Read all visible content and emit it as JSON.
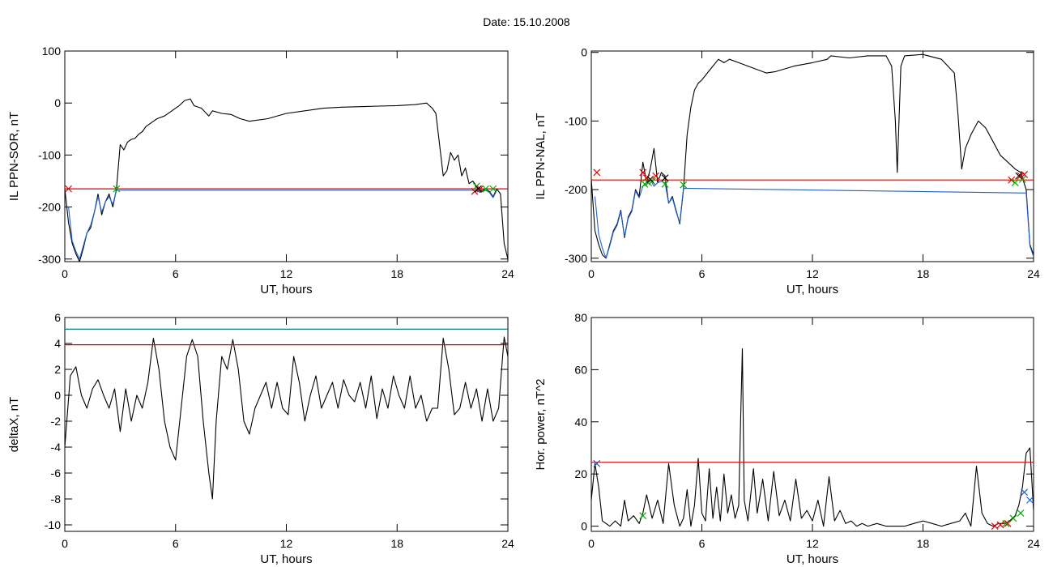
{
  "title": "Date:  15.10.2008",
  "chart_data": [
    {
      "type": "line",
      "xlabel": "UT, hours",
      "ylabel": "IL PPN-SOR, nT",
      "xlim": [
        0,
        24
      ],
      "ylim": [
        -305,
        100
      ],
      "xticks": [
        0,
        6,
        12,
        18,
        24
      ],
      "yticks": [
        100,
        0,
        -100,
        -200,
        -300
      ],
      "series": [
        {
          "color": "#000000",
          "x": [
            0,
            0.2,
            0.4,
            0.6,
            0.8,
            1.0,
            1.2,
            1.4,
            1.6,
            1.8,
            2.0,
            2.2,
            2.4,
            2.6,
            2.8,
            3.0,
            3.2,
            3.4,
            3.6,
            3.8,
            4.0,
            4.2,
            4.4,
            4.6,
            4.8,
            5.0,
            5.4,
            5.8,
            6.2,
            6.5,
            6.8,
            7.0,
            7.4,
            7.8,
            8.0,
            8.5,
            9.0,
            9.5,
            10.0,
            11.0,
            12.0,
            13.0,
            14.0,
            15.0,
            16.0,
            17.0,
            18.0,
            19.0,
            19.6,
            19.9,
            20.1,
            20.3,
            20.5,
            20.7,
            20.9,
            21.1,
            21.3,
            21.5,
            21.7,
            21.9,
            22.1,
            22.3,
            22.5,
            22.8,
            23.0,
            23.2,
            23.4,
            23.6,
            23.8,
            24.0
          ],
          "y": [
            -165,
            -230,
            -270,
            -290,
            -305,
            -280,
            -250,
            -240,
            -210,
            -175,
            -215,
            -190,
            -175,
            -200,
            -165,
            -80,
            -90,
            -75,
            -70,
            -68,
            -60,
            -55,
            -45,
            -40,
            -35,
            -30,
            -25,
            -15,
            -5,
            5,
            8,
            -5,
            -10,
            -25,
            -15,
            -20,
            -22,
            -30,
            -35,
            -30,
            -20,
            -15,
            -10,
            -8,
            -7,
            -6,
            -5,
            -3,
            0,
            -10,
            -20,
            -80,
            -140,
            -130,
            -95,
            -110,
            -100,
            -140,
            -125,
            -155,
            -150,
            -160,
            -170,
            -165,
            -170,
            -180,
            -165,
            -175,
            -270,
            -300
          ]
        },
        {
          "color": "#1f5fd0",
          "x": [
            0.2,
            0.4,
            0.6,
            0.8,
            1.0,
            1.2,
            1.4,
            1.6,
            1.8,
            2.0,
            2.2,
            2.4,
            2.6,
            2.8,
            22.1,
            22.3,
            22.5,
            22.8,
            23.0,
            23.2,
            23.4
          ],
          "y": [
            -200,
            -265,
            -285,
            -300,
            -275,
            -250,
            -235,
            -210,
            -180,
            -210,
            -190,
            -180,
            -195,
            -168,
            -168,
            -168,
            -172,
            -168,
            -172,
            -182,
            -168
          ]
        },
        {
          "color": "#e00000",
          "x": [
            0,
            24
          ],
          "y": [
            -165,
            -165
          ]
        }
      ],
      "markers": [
        {
          "color": "#e00000",
          "x": [
            0.2,
            22.2,
            22.5
          ],
          "y": [
            -165,
            -170,
            -165
          ]
        },
        {
          "color": "#00b000",
          "x": [
            2.8,
            22.3,
            22.8,
            23.2
          ],
          "y": [
            -165,
            -160,
            -165,
            -165
          ]
        },
        {
          "color": "#000000",
          "x": [
            22.4
          ],
          "y": [
            -165
          ]
        }
      ]
    },
    {
      "type": "line",
      "xlabel": "UT, hours",
      "ylabel": "IL PPN-NAL, nT",
      "xlim": [
        0,
        24
      ],
      "ylim": [
        -305,
        2
      ],
      "xticks": [
        0,
        6,
        12,
        18,
        24
      ],
      "yticks": [
        0,
        -100,
        -200,
        -300
      ],
      "series": [
        {
          "color": "#000000",
          "x": [
            0,
            0.2,
            0.4,
            0.6,
            0.8,
            1.0,
            1.2,
            1.4,
            1.6,
            1.8,
            2.0,
            2.2,
            2.4,
            2.6,
            2.8,
            3.0,
            3.2,
            3.4,
            3.6,
            3.8,
            4.0,
            4.2,
            4.4,
            4.6,
            4.8,
            5.0,
            5.2,
            5.4,
            5.6,
            5.8,
            6.0,
            6.3,
            6.6,
            6.9,
            7.2,
            7.5,
            8.0,
            8.5,
            9.0,
            9.5,
            10.0,
            11.0,
            12.0,
            12.8,
            13.0,
            14.0,
            15.0,
            16.0,
            16.3,
            16.5,
            16.6,
            16.8,
            17.0,
            18.0,
            19.0,
            19.7,
            19.9,
            20.1,
            20.3,
            20.6,
            21.0,
            21.4,
            21.8,
            22.2,
            22.6,
            23.0,
            23.3,
            23.6,
            23.8,
            24.0
          ],
          "y": [
            -185,
            -260,
            -280,
            -295,
            -300,
            -280,
            -260,
            -250,
            -230,
            -270,
            -240,
            -230,
            -200,
            -210,
            -160,
            -190,
            -170,
            -140,
            -190,
            -175,
            -180,
            -220,
            -210,
            -230,
            -250,
            -200,
            -120,
            -80,
            -55,
            -45,
            -40,
            -30,
            -20,
            -10,
            -15,
            -10,
            -15,
            -20,
            -25,
            -30,
            -28,
            -20,
            -15,
            -10,
            -5,
            -8,
            -5,
            -5,
            -20,
            -100,
            -175,
            -20,
            -5,
            -3,
            -10,
            -30,
            -90,
            -170,
            -140,
            -120,
            -100,
            -110,
            -130,
            -150,
            -160,
            -170,
            -175,
            -200,
            -280,
            -295
          ]
        },
        {
          "color": "#1f5fd0",
          "x": [
            0.2,
            0.4,
            0.6,
            0.8,
            1.0,
            1.2,
            1.4,
            1.6,
            1.8,
            2.0,
            2.2,
            2.4,
            2.6,
            2.8,
            3.0,
            3.2,
            3.4,
            3.6,
            3.8,
            4.0,
            4.2,
            4.4,
            4.6,
            4.8,
            5.0,
            23.6,
            23.8,
            24.0
          ],
          "y": [
            -210,
            -265,
            -285,
            -300,
            -282,
            -262,
            -252,
            -232,
            -268,
            -242,
            -232,
            -202,
            -212,
            -195,
            -192,
            -185,
            -195,
            -190,
            -188,
            -190,
            -220,
            -212,
            -232,
            -248,
            -198,
            -205,
            -282,
            -298
          ]
        },
        {
          "color": "#e00000",
          "x": [
            0,
            24
          ],
          "y": [
            -186,
            -186
          ]
        }
      ],
      "markers": [
        {
          "color": "#e00000",
          "x": [
            0.3,
            2.8,
            3.0,
            3.5,
            22.8,
            23.3,
            23.5
          ],
          "y": [
            -175,
            -175,
            -183,
            -180,
            -186,
            -180,
            -178
          ]
        },
        {
          "color": "#00b000",
          "x": [
            2.9,
            3.1,
            3.3,
            4.0,
            5.0,
            23.0,
            23.4
          ],
          "y": [
            -192,
            -190,
            -188,
            -192,
            -193,
            -190,
            -185
          ]
        },
        {
          "color": "#000000",
          "x": [
            3.2,
            4.0,
            23.2
          ],
          "y": [
            -185,
            -183,
            -180
          ]
        }
      ]
    },
    {
      "type": "line",
      "xlabel": "UT, hours",
      "ylabel": "deltaX, nT",
      "xlim": [
        0,
        24
      ],
      "ylim": [
        -10.5,
        6
      ],
      "xticks": [
        0,
        6,
        12,
        18,
        24
      ],
      "yticks": [
        6,
        4,
        2,
        0,
        -2,
        -4,
        -6,
        -8,
        -10
      ],
      "series": [
        {
          "color": "#000000",
          "x": [
            0,
            0.3,
            0.6,
            0.9,
            1.2,
            1.5,
            1.8,
            2.1,
            2.4,
            2.7,
            3.0,
            3.3,
            3.6,
            3.9,
            4.2,
            4.5,
            4.8,
            5.1,
            5.4,
            5.7,
            6.0,
            6.3,
            6.6,
            6.9,
            7.2,
            7.5,
            7.8,
            8.0,
            8.2,
            8.5,
            8.8,
            9.1,
            9.4,
            9.7,
            10.0,
            10.3,
            10.6,
            10.9,
            11.2,
            11.5,
            11.8,
            12.1,
            12.4,
            12.7,
            13.0,
            13.3,
            13.6,
            13.9,
            14.2,
            14.5,
            14.8,
            15.1,
            15.4,
            15.7,
            16.0,
            16.3,
            16.6,
            16.9,
            17.2,
            17.5,
            17.8,
            18.1,
            18.4,
            18.7,
            19.0,
            19.3,
            19.6,
            19.9,
            20.2,
            20.5,
            20.8,
            21.1,
            21.4,
            21.7,
            22.0,
            22.3,
            22.6,
            22.9,
            23.2,
            23.5,
            23.8,
            24.0
          ],
          "y": [
            -4,
            1.5,
            2.2,
            0,
            -1,
            0.5,
            1.2,
            0,
            -1,
            0.5,
            -2.8,
            0.5,
            -2,
            0,
            -1,
            1,
            4.4,
            2,
            -2,
            -4,
            -5,
            -1,
            3,
            4.3,
            3,
            -2,
            -6,
            -8,
            -2,
            3,
            2,
            4.3,
            2,
            -2,
            -3,
            -1,
            0,
            1,
            -1,
            1,
            -1,
            -1.5,
            3,
            1,
            -2,
            0,
            1.5,
            -1,
            0,
            1,
            -1,
            1.2,
            0,
            -0.5,
            1,
            -1,
            1.5,
            -1.8,
            0.5,
            -1,
            1.5,
            0,
            -1,
            1.5,
            -1,
            0,
            -2,
            -1,
            -1,
            4.4,
            2,
            -1.5,
            -1,
            1,
            -1,
            0.5,
            -2,
            0.5,
            -2,
            -1,
            4.5,
            3
          ]
        },
        {
          "color": "#e00000",
          "x": [
            0,
            24
          ],
          "y": [
            3.9,
            3.9
          ]
        },
        {
          "color": "#008080",
          "x": [
            0,
            24
          ],
          "y": [
            5.1,
            5.1
          ]
        }
      ],
      "markers": []
    },
    {
      "type": "line",
      "xlabel": "UT, hours",
      "ylabel": "Hor. power, nT^2",
      "xlim": [
        0,
        24
      ],
      "ylim": [
        -2,
        80
      ],
      "xticks": [
        0,
        6,
        12,
        18,
        24
      ],
      "yticks": [
        80,
        60,
        40,
        20,
        0
      ],
      "series": [
        {
          "color": "#000000",
          "x": [
            0,
            0.2,
            0.4,
            0.6,
            0.8,
            1.0,
            1.3,
            1.6,
            1.8,
            2.0,
            2.3,
            2.6,
            2.8,
            3.0,
            3.3,
            3.6,
            3.9,
            4.2,
            4.5,
            4.8,
            5.0,
            5.2,
            5.4,
            5.6,
            5.8,
            6.0,
            6.2,
            6.4,
            6.6,
            6.8,
            7.0,
            7.2,
            7.4,
            7.6,
            7.8,
            8.0,
            8.1,
            8.2,
            8.3,
            8.5,
            8.8,
            9.0,
            9.3,
            9.6,
            9.9,
            10.2,
            10.5,
            10.8,
            11.1,
            11.4,
            11.7,
            12.0,
            12.3,
            12.6,
            12.9,
            13.2,
            13.5,
            13.8,
            14.1,
            14.4,
            14.7,
            15.0,
            15.5,
            16.0,
            16.5,
            17.0,
            17.5,
            18.0,
            18.5,
            19.0,
            19.5,
            20.0,
            20.3,
            20.6,
            20.9,
            21.2,
            21.5,
            21.8,
            22.1,
            22.4,
            22.7,
            23.0,
            23.2,
            23.4,
            23.6,
            23.8,
            24.0
          ],
          "y": [
            10,
            24,
            15,
            2,
            1,
            0,
            2,
            0,
            10,
            2,
            4,
            1,
            5,
            12,
            3,
            10,
            1,
            24,
            8,
            0,
            3,
            14,
            0,
            8,
            26,
            5,
            2,
            22,
            3,
            15,
            2,
            20,
            5,
            12,
            3,
            8,
            40,
            68,
            10,
            2,
            22,
            5,
            18,
            2,
            21,
            4,
            10,
            2,
            18,
            3,
            6,
            2,
            10,
            0,
            19,
            2,
            6,
            1,
            2,
            0,
            1,
            0,
            1,
            0,
            0,
            0,
            1,
            2,
            1,
            0,
            1,
            2,
            5,
            0,
            23,
            5,
            1,
            0,
            1,
            1,
            2,
            4,
            8,
            15,
            28,
            30,
            6
          ]
        },
        {
          "color": "#e00000",
          "x": [
            0,
            24
          ],
          "y": [
            24.5,
            24.5
          ]
        }
      ],
      "markers": [
        {
          "color": "#1f5fd0",
          "x": [
            0.3,
            23.5,
            23.8
          ],
          "y": [
            24,
            13,
            10
          ]
        },
        {
          "color": "#00b000",
          "x": [
            2.8,
            22.5,
            22.9,
            23.3
          ],
          "y": [
            4,
            1,
            3,
            5
          ]
        },
        {
          "color": "#e00000",
          "x": [
            21.9,
            22.2,
            22.6
          ],
          "y": [
            0,
            0.5,
            1
          ]
        }
      ]
    }
  ]
}
